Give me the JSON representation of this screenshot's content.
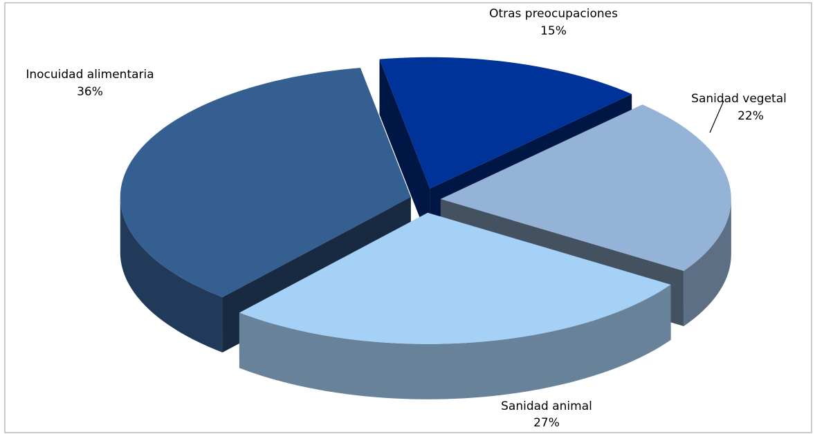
{
  "chart_data": {
    "type": "pie",
    "categories": [
      "Otras preocupaciones",
      "Sanidad vegetal",
      "Sanidad animal",
      "Inocuidad alimentaria"
    ],
    "values": [
      15,
      22,
      27,
      36
    ],
    "value_labels": [
      "15%",
      "22%",
      "27%",
      "36%"
    ],
    "colors": [
      "#003399",
      "#95b3d7",
      "#a6d1f7",
      "#355e91"
    ]
  }
}
